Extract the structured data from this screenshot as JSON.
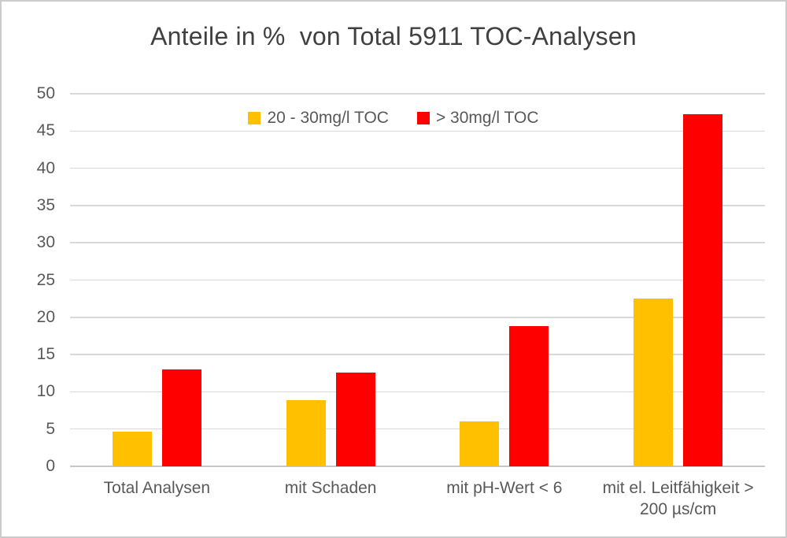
{
  "title": "Anteile in %  von Total 5911 TOC-Analysen",
  "chart_data": {
    "type": "bar",
    "title": "Anteile in %  von Total 5911 TOC-Analysen",
    "categories": [
      "Total Analysen",
      "mit Schaden",
      "mit pH-Wert < 6",
      "mit el. Leitfähigkeit > 200 µs/cm"
    ],
    "series": [
      {
        "name": "20 - 30mg/l TOC",
        "color": "#FFC000",
        "values": [
          4.7,
          8.9,
          6.0,
          22.5
        ]
      },
      {
        "name": "> 30mg/l TOC",
        "color": "#FE0000",
        "values": [
          13.0,
          12.6,
          18.8,
          47.3
        ]
      }
    ],
    "xlabel": "",
    "ylabel": "",
    "ylim": [
      0,
      50
    ],
    "ytick_step": 5,
    "grid": true,
    "legend_position": "top-center"
  },
  "colors": {
    "grid": "#D9D9D9",
    "axis_line": "#C6C6C6",
    "label_text": "#595959",
    "title_text": "#404040",
    "background": "#FFFFFF",
    "frame_border": "#CCCCCC"
  }
}
